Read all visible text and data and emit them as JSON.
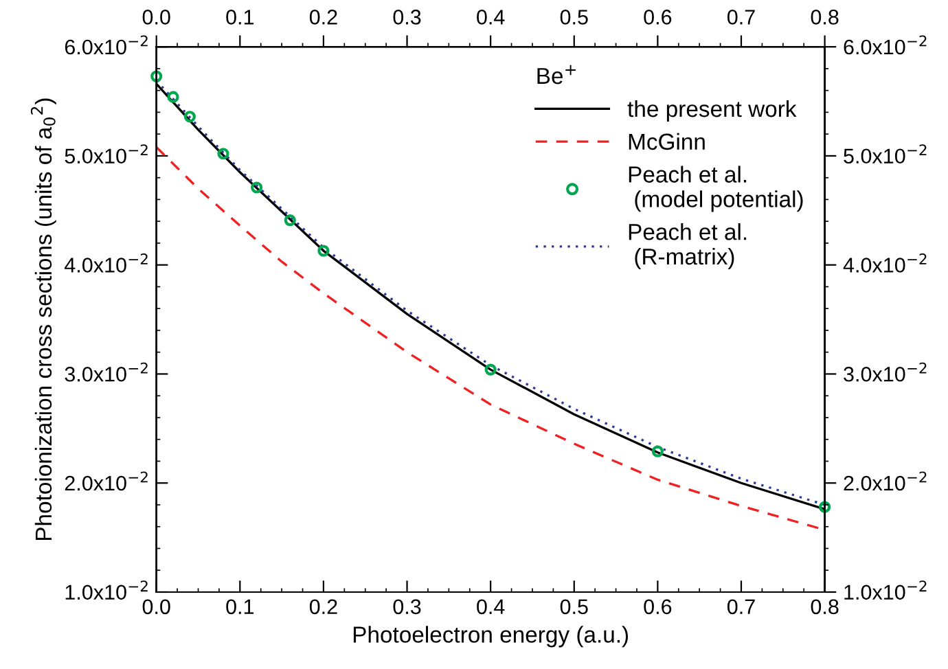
{
  "chart_data": {
    "type": "line",
    "xlabel": "Photoelectron energy (a.u.)",
    "ylabel": "Photoionization cross sections (units of a$_{0}$$^{2}$)",
    "legend_title": "Be$^{+}$",
    "xlim": [
      0.0,
      0.8
    ],
    "xticks": [
      {
        "value": 0.0,
        "label": "0.0"
      },
      0.1,
      0.2,
      0.3,
      0.4,
      0.5,
      0.6,
      0.7,
      0.8
    ],
    "x2lim": [
      0.0,
      0.8
    ],
    "x2ticks": [
      {
        "value": 0.0,
        "label": "0.0"
      },
      0.1,
      0.2,
      0.3,
      0.4,
      0.5,
      0.6,
      0.7,
      0.8
    ],
    "ylim": [
      0.01,
      0.06
    ],
    "yticks": [
      {
        "value": 0.01,
        "label": "1.0x10$^{−2}$"
      },
      {
        "value": 0.02,
        "label": "2.0x10$^{−2}$"
      },
      {
        "value": 0.03,
        "label": "3.0x10$^{−2}$"
      },
      {
        "value": 0.04,
        "label": "4.0x10$^{−2}$"
      },
      {
        "value": 0.05,
        "label": "5.0x10$^{−2}$"
      },
      {
        "value": 0.06,
        "label": "6.0x10$^{−2}$"
      }
    ],
    "y2lim": [
      0.01,
      0.06
    ],
    "y2ticks": [
      {
        "value": 0.01,
        "label": "1.0x10$^{−2}$"
      },
      {
        "value": 0.02,
        "label": "2.0x10$^{−2}$"
      },
      {
        "value": 0.03,
        "label": "3.0x10$^{−2}$"
      },
      {
        "value": 0.04,
        "label": "4.0x10$^{−2}$"
      },
      {
        "value": 0.05,
        "label": "5.0x10$^{−2}$"
      },
      {
        "value": 0.06,
        "label": "6.0x10$^{−2}$"
      }
    ],
    "grid": false,
    "legend": "top right",
    "series": [
      {
        "name": "the present work",
        "color": "#000000",
        "line_style": "solid",
        "marker": "none",
        "x": [
          0.0,
          0.05,
          0.1,
          0.2,
          0.3,
          0.4,
          0.5,
          0.6,
          0.7,
          0.8
        ],
        "values": [
          0.0566,
          0.0524,
          0.0485,
          0.0413,
          0.0355,
          0.0304,
          0.0263,
          0.0228,
          0.02,
          0.0176
        ]
      },
      {
        "name": "McGinn",
        "color": "#ee2222",
        "line_style": "dashed",
        "marker": "none",
        "x": [
          0.0,
          0.05,
          0.1,
          0.15,
          0.2,
          0.3,
          0.4,
          0.5,
          0.6,
          0.7,
          0.8
        ],
        "values": [
          0.0508,
          0.047,
          0.0436,
          0.0403,
          0.0374,
          0.032,
          0.0272,
          0.0236,
          0.0203,
          0.0179,
          0.0157
        ]
      },
      {
        "name": "Peach et al.\n (model potential)",
        "type": "scatter",
        "color": "#00a650",
        "marker": "circle",
        "x": [
          0.0,
          0.02,
          0.04,
          0.08,
          0.12,
          0.16,
          0.2,
          0.4,
          0.6,
          0.8
        ],
        "values": [
          0.0573,
          0.0554,
          0.0536,
          0.0502,
          0.0471,
          0.0441,
          0.0413,
          0.0304,
          0.0229,
          0.0178
        ]
      },
      {
        "name": "Peach et al.\n (R-matrix)",
        "color": "#2b3a9a",
        "line_style": "dotted",
        "marker": "none",
        "x": [
          0.0,
          0.05,
          0.1,
          0.2,
          0.3,
          0.4,
          0.5,
          0.6,
          0.7,
          0.8
        ],
        "values": [
          0.0569,
          0.0527,
          0.0487,
          0.0416,
          0.0358,
          0.0308,
          0.0268,
          0.0233,
          0.0204,
          0.018
        ]
      }
    ]
  }
}
